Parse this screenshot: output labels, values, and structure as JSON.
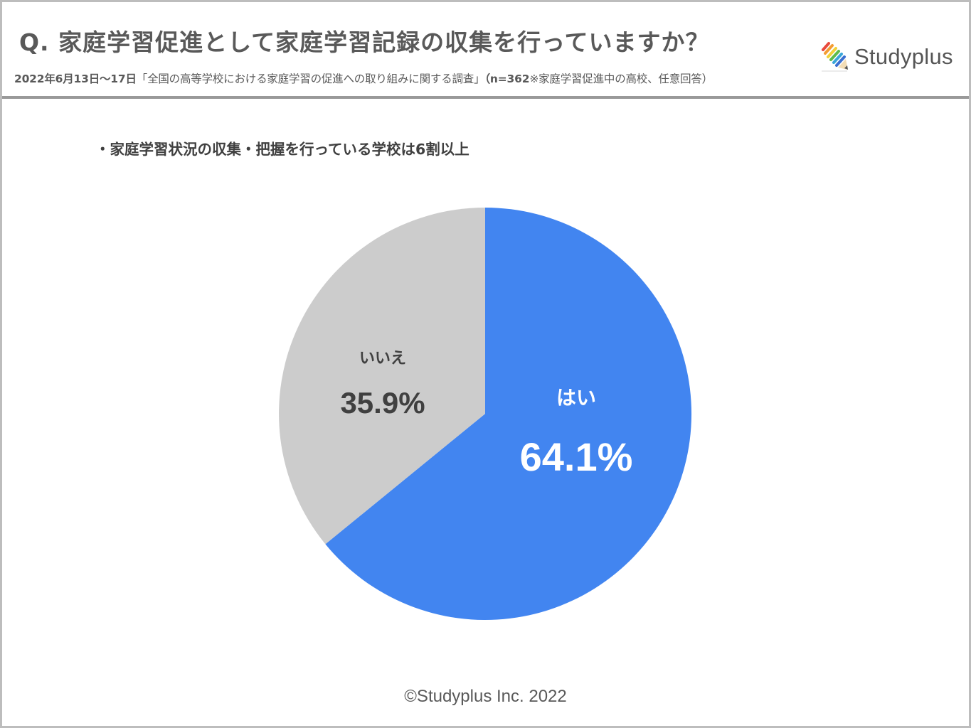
{
  "header": {
    "title": "Q. 家庭学習促進として家庭学習記録の収集を行っていますか？",
    "subtitle_date": "2022年6月13日～17日",
    "subtitle_survey": "「全国の高等学校における家庭学習の促進への取り組みに関する調査」",
    "subtitle_n": "（n=362",
    "subtitle_note": "※家庭学習促進中の高校、任意回答）",
    "logo_text": "Studyplus",
    "logo_icon": "pencil-rainbow-icon"
  },
  "headline": "・家庭学習状況の収集・把握を行っている学校は6割以上",
  "footer": "©Studyplus Inc. 2022",
  "colors": {
    "yes": "#4285f0",
    "no": "#cccccc",
    "text_dark": "#404040",
    "frame": "#bdbdbd"
  },
  "chart_data": {
    "type": "pie",
    "title": "Q. 家庭学習促進として家庭学習記録の収集を行っていますか？",
    "subtitle": "・家庭学習状況の収集・把握を行っている学校は6割以上",
    "categories": [
      "はい",
      "いいえ"
    ],
    "values": [
      64.1,
      35.9
    ],
    "labels": [
      "64.1%",
      "35.9%"
    ],
    "colors": [
      "#4285f0",
      "#cccccc"
    ],
    "start_angle": "12 o'clock, clockwise",
    "n": 362,
    "legend": "none (inline labels)"
  }
}
